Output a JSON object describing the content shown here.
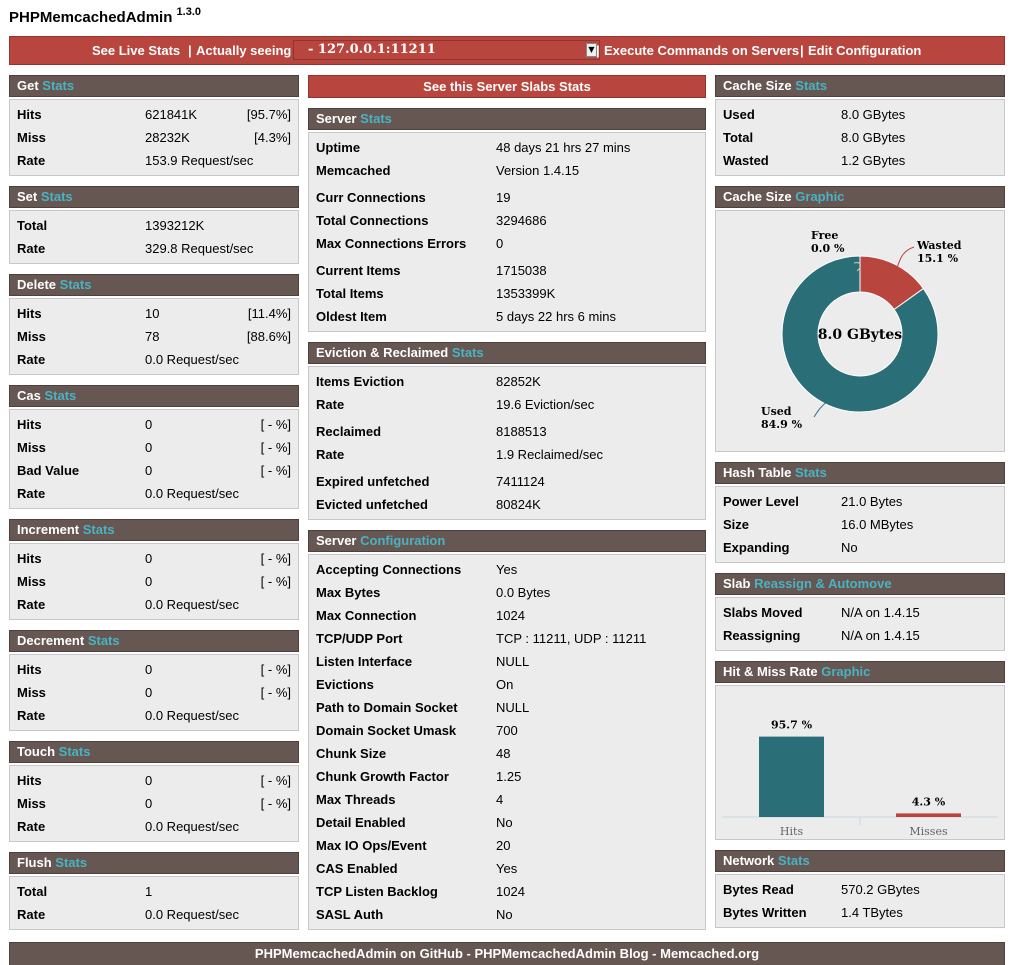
{
  "app": {
    "title": "PHPMemcachedAdmin",
    "version": "1.3.0"
  },
  "topbar": {
    "live_stats": "See Live Stats",
    "actually_seeing": "Actually seeing",
    "server": "- 127.0.0.1:11211",
    "execute": "Execute Commands on Servers",
    "edit_config": "Edit Configuration",
    "separator": "|"
  },
  "get": {
    "title": "Get",
    "accent": "Stats",
    "rows": [
      {
        "k": "Hits",
        "v": "621841K",
        "p": "[95.7%]"
      },
      {
        "k": "Miss",
        "v": "28232K",
        "p": "[4.3%]"
      },
      {
        "k": "Rate",
        "v": "153.9 Request/sec",
        "p": ""
      }
    ]
  },
  "set": {
    "title": "Set",
    "accent": "Stats",
    "rows": [
      {
        "k": "Total",
        "v": "1393212K",
        "p": ""
      },
      {
        "k": "Rate",
        "v": "329.8 Request/sec",
        "p": ""
      }
    ]
  },
  "delete": {
    "title": "Delete",
    "accent": "Stats",
    "rows": [
      {
        "k": "Hits",
        "v": "10",
        "p": "[11.4%]"
      },
      {
        "k": "Miss",
        "v": "78",
        "p": "[88.6%]"
      },
      {
        "k": "Rate",
        "v": "0.0 Request/sec",
        "p": ""
      }
    ]
  },
  "cas": {
    "title": "Cas",
    "accent": "Stats",
    "rows": [
      {
        "k": "Hits",
        "v": "0",
        "p": "[ - %]"
      },
      {
        "k": "Miss",
        "v": "0",
        "p": "[ - %]"
      },
      {
        "k": "Bad Value",
        "v": "0",
        "p": "[ - %]"
      },
      {
        "k": "Rate",
        "v": "0.0 Request/sec",
        "p": ""
      }
    ]
  },
  "increment": {
    "title": "Increment",
    "accent": "Stats",
    "rows": [
      {
        "k": "Hits",
        "v": "0",
        "p": "[ - %]"
      },
      {
        "k": "Miss",
        "v": "0",
        "p": "[ - %]"
      },
      {
        "k": "Rate",
        "v": "0.0 Request/sec",
        "p": ""
      }
    ]
  },
  "decrement": {
    "title": "Decrement",
    "accent": "Stats",
    "rows": [
      {
        "k": "Hits",
        "v": "0",
        "p": "[ - %]"
      },
      {
        "k": "Miss",
        "v": "0",
        "p": "[ - %]"
      },
      {
        "k": "Rate",
        "v": "0.0 Request/sec",
        "p": ""
      }
    ]
  },
  "touch": {
    "title": "Touch",
    "accent": "Stats",
    "rows": [
      {
        "k": "Hits",
        "v": "0",
        "p": "[ - %]"
      },
      {
        "k": "Miss",
        "v": "0",
        "p": "[ - %]"
      },
      {
        "k": "Rate",
        "v": "0.0 Request/sec",
        "p": ""
      }
    ]
  },
  "flush": {
    "title": "Flush",
    "accent": "Stats",
    "rows": [
      {
        "k": "Total",
        "v": "1",
        "p": ""
      },
      {
        "k": "Rate",
        "v": "0.0 Request/sec",
        "p": ""
      }
    ]
  },
  "slabs_button": "See this Server Slabs Stats",
  "server": {
    "title": "Server",
    "accent": "Stats",
    "rows": [
      {
        "k": "Uptime",
        "v": "48 days 21 hrs 27 mins"
      },
      {
        "k": "Memcached",
        "v": "Version 1.4.15"
      },
      {
        "k": "Curr Connections",
        "v": "19"
      },
      {
        "k": "Total Connections",
        "v": "3294686"
      },
      {
        "k": "Max Connections Errors",
        "v": "0"
      },
      {
        "k": "Current Items",
        "v": "1715038"
      },
      {
        "k": "Total Items",
        "v": "1353399K"
      },
      {
        "k": "Oldest Item",
        "v": "5 days 22 hrs 6 mins"
      }
    ]
  },
  "eviction": {
    "title": "Eviction & Reclaimed",
    "accent": "Stats",
    "rows": [
      {
        "k": "Items Eviction",
        "v": "82852K"
      },
      {
        "k": "Rate",
        "v": "19.6 Eviction/sec"
      },
      {
        "k": "Reclaimed",
        "v": "8188513"
      },
      {
        "k": "Rate",
        "v": "1.9 Reclaimed/sec"
      },
      {
        "k": "Expired unfetched",
        "v": "7411124"
      },
      {
        "k": "Evicted unfetched",
        "v": "80824K"
      }
    ]
  },
  "config": {
    "title": "Server",
    "accent": "Configuration",
    "rows": [
      {
        "k": "Accepting Connections",
        "v": "Yes"
      },
      {
        "k": "Max Bytes",
        "v": "0.0 Bytes"
      },
      {
        "k": "Max Connection",
        "v": "1024"
      },
      {
        "k": "TCP/UDP Port",
        "v": "TCP : 11211, UDP : 11211"
      },
      {
        "k": "Listen Interface",
        "v": "NULL"
      },
      {
        "k": "Evictions",
        "v": "On"
      },
      {
        "k": "Path to Domain Socket",
        "v": "NULL"
      },
      {
        "k": "Domain Socket Umask",
        "v": "700"
      },
      {
        "k": "Chunk Size",
        "v": "48"
      },
      {
        "k": "Chunk Growth Factor",
        "v": "1.25"
      },
      {
        "k": "Max Threads",
        "v": "4"
      },
      {
        "k": "Detail Enabled",
        "v": "No"
      },
      {
        "k": "Max IO Ops/Event",
        "v": "20"
      },
      {
        "k": "CAS Enabled",
        "v": "Yes"
      },
      {
        "k": "TCP Listen Backlog",
        "v": "1024"
      },
      {
        "k": "SASL Auth",
        "v": "No"
      }
    ]
  },
  "cache_size": {
    "title": "Cache Size",
    "accent": "Stats",
    "rows": [
      {
        "k": "Used",
        "v": "8.0 GBytes"
      },
      {
        "k": "Total",
        "v": "8.0 GBytes"
      },
      {
        "k": "Wasted",
        "v": "1.2 GBytes"
      }
    ]
  },
  "cache_graphic": {
    "title": "Cache Size",
    "accent": "Graphic",
    "center": "8.0 GBytes"
  },
  "hash": {
    "title": "Hash Table",
    "accent": "Stats",
    "rows": [
      {
        "k": "Power Level",
        "v": "21.0 Bytes"
      },
      {
        "k": "Size",
        "v": "16.0 MBytes"
      },
      {
        "k": "Expanding",
        "v": "No"
      }
    ]
  },
  "slab": {
    "title": "Slab",
    "accent": "Reassign & Automove",
    "rows": [
      {
        "k": "Slabs Moved",
        "v": "N/A on 1.4.15"
      },
      {
        "k": "Reassigning",
        "v": "N/A on 1.4.15"
      }
    ]
  },
  "hitmiss_graphic": {
    "title": "Hit & Miss Rate",
    "accent": "Graphic"
  },
  "network": {
    "title": "Network",
    "accent": "Stats",
    "rows": [
      {
        "k": "Bytes Read",
        "v": "570.2 GBytes"
      },
      {
        "k": "Bytes Written",
        "v": "1.4 TBytes"
      }
    ]
  },
  "footer": "PHPMemcachedAdmin on GitHub - PHPMemcachedAdmin Blog - Memcached.org",
  "colors": {
    "header": "#675752",
    "accent": "#49b3c3",
    "red": "#b8463f",
    "teal": "#2a6e78"
  },
  "chart_data": [
    {
      "type": "pie",
      "slices": [
        {
          "name": "Free",
          "label": "0.0 %",
          "value": 0.0,
          "color": "#dddddd"
        },
        {
          "name": "Wasted",
          "label": "15.1 %",
          "value": 15.1,
          "color": "#b8463f"
        },
        {
          "name": "Used",
          "label": "84.9 %",
          "value": 84.9,
          "color": "#2a6e78"
        }
      ]
    },
    {
      "type": "bar",
      "categories": [
        "Hits",
        "Misses"
      ],
      "values": [
        95.7,
        4.3
      ],
      "labels": [
        "95.7 %",
        "4.3 %"
      ],
      "colors": [
        "#2a6e78",
        "#b8463f"
      ],
      "ylim": [
        0,
        100
      ]
    }
  ]
}
